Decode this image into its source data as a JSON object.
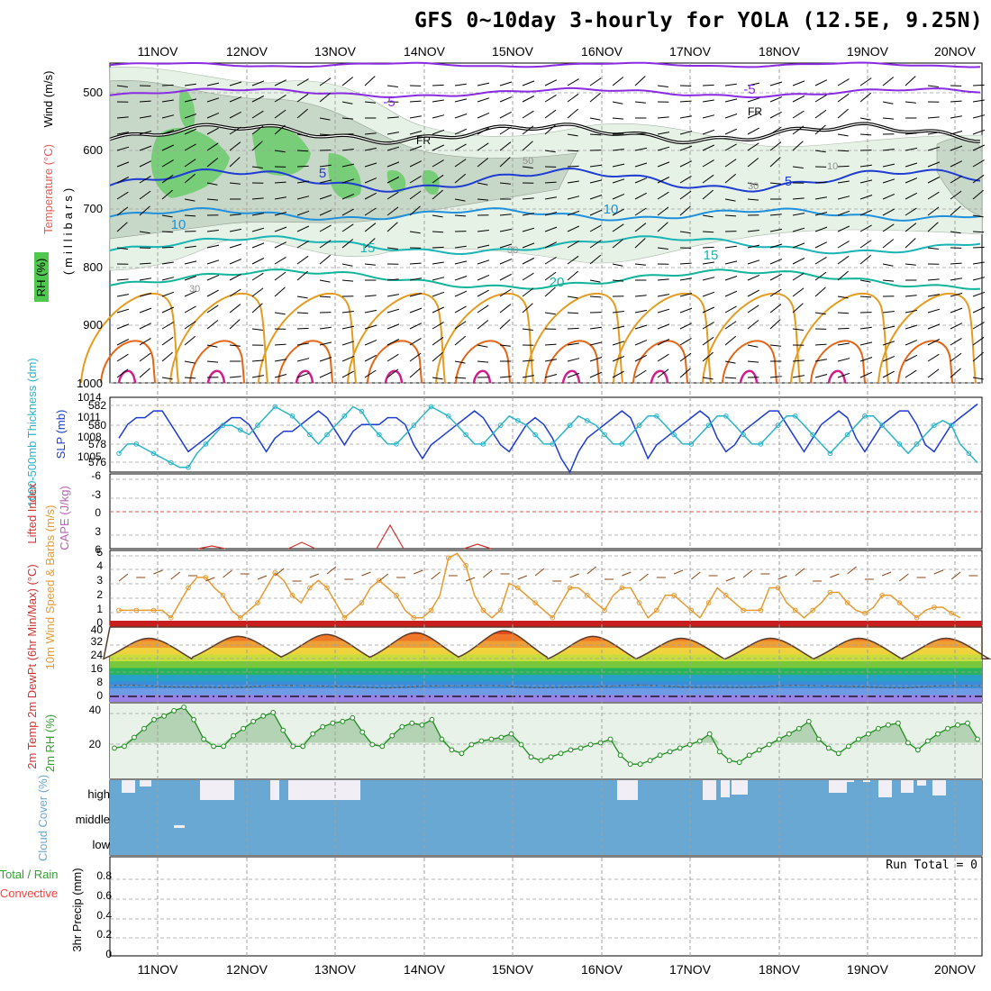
{
  "title": "GFS 0~10day 3-hourly for YOLA (12.5E, 9.25N)",
  "dates": [
    "11NOV",
    "12NOV",
    "13NOV",
    "14NOV",
    "15NOV",
    "16NOV",
    "17NOV",
    "18NOV",
    "19NOV",
    "20NOV"
  ],
  "colors": {
    "grid": "#a0a0a0",
    "purple": "#8a2be2",
    "black": "#000000",
    "blue": "#1e3cd2",
    "lightblue": "#1e90dc",
    "teal": "#18b4b4",
    "green20": "#10b49a",
    "orange": "#e69b1e",
    "darkorange": "#e66414",
    "magenta": "#d21e8c",
    "slp": "#1e3cd2",
    "thick": "#28b4c8",
    "cape_red": "#d23232",
    "wind": "#e69b32",
    "barb": "#8b4513",
    "rh": "#32a032",
    "cloud": "#6aa8d4",
    "precip_lbl": "#ff4040"
  },
  "panels": {
    "upper": {
      "ylabel": "(millibars)",
      "legend_wind": "Wind (m/s)",
      "legend_temp": "Temperature (°C)",
      "legend_rh": "RH (%)",
      "pressure_ticks": [
        "500",
        "600",
        "700",
        "800",
        "900",
        "1000"
      ],
      "contour_labels": [
        "-5",
        "-5",
        "FR",
        "FR",
        "5",
        "5",
        "10",
        "10",
        "15",
        "15",
        "20"
      ],
      "rh_labels": [
        "50",
        "30",
        "10",
        "30",
        "30"
      ]
    },
    "slp": {
      "label_thick": "1000-500mb Thickness (dm)",
      "label_slp": "SLP (mb)",
      "left_ticks": [
        "582",
        "580",
        "578",
        "576"
      ],
      "right_ticks": [
        "1014",
        "1011",
        "1008",
        "1005"
      ]
    },
    "cape": {
      "label_li": "Lifted Index",
      "label_cape": "CAPE (J/kg)",
      "ticks": [
        "-6",
        "-3",
        "0",
        "3",
        "6"
      ]
    },
    "wind10": {
      "label": "10m Wind Speed & Barbs (m/s)",
      "ticks": [
        "0",
        "1",
        "2",
        "3",
        "4",
        "5"
      ]
    },
    "temp": {
      "label": "2m Temp 2m DewPt (6hr Min/Max) (°C)",
      "ticks": [
        "0",
        "8",
        "16",
        "24",
        "32",
        "40"
      ]
    },
    "rh2m": {
      "label": "2m RH (%)",
      "ticks": [
        "20",
        "40"
      ]
    },
    "cloud": {
      "label": "Cloud Cover (%)",
      "levels": [
        "high",
        "middle",
        "low"
      ]
    },
    "precip": {
      "label": "3hr Precip (mm)",
      "label_total": "Total / Rain",
      "label_conv": "Convective",
      "ticks": [
        "0",
        "0.2",
        "0.4",
        "0.6",
        "0.8"
      ],
      "run_total": "Run Total = 0"
    }
  },
  "chart_data": [
    {
      "type": "line",
      "title": "SLP (mb)",
      "x_unit": "hours from 10NOV12Z (3-hourly)",
      "ylim": [
        1003,
        1014
      ],
      "values": [
        1008,
        1010,
        1011,
        1011,
        1012,
        1012,
        1010,
        1008,
        1006,
        1007,
        1008,
        1009,
        1010,
        1011,
        1011,
        1010,
        1008,
        1006,
        1008,
        1009,
        1009,
        1010,
        1011,
        1012,
        1011,
        1009,
        1007,
        1009,
        1010,
        1010,
        1010,
        1011,
        1011,
        1010,
        1007,
        1005,
        1007,
        1008,
        1009,
        1010,
        1011,
        1012,
        1011,
        1009,
        1007,
        1006,
        1008,
        1010,
        1011,
        1010,
        1008,
        1005,
        1003,
        1006,
        1008,
        1009,
        1010,
        1011,
        1012,
        1011,
        1008,
        1005,
        1007,
        1008,
        1009,
        1010,
        1011,
        1012,
        1011,
        1008,
        1006,
        1007,
        1009,
        1010,
        1011,
        1012,
        1012,
        1010,
        1008,
        1006,
        1008,
        1010,
        1011,
        1012,
        1011,
        1008,
        1006,
        1008,
        1010,
        1011,
        1012,
        1012,
        1010,
        1007,
        1006,
        1008,
        1010,
        1011,
        1012,
        1013
      ]
    },
    {
      "type": "line",
      "title": "1000-500mb Thickness (dm)",
      "ylim": [
        575,
        583
      ],
      "values": [
        577,
        578,
        578,
        577.5,
        577,
        576.5,
        576,
        575.5,
        575.5,
        577,
        578,
        579,
        580,
        580,
        579.5,
        579,
        580,
        581,
        582,
        581.5,
        581,
        580,
        579,
        578,
        579,
        580,
        581,
        582,
        581.5,
        580,
        579,
        578,
        578,
        579,
        580,
        581,
        582,
        581.5,
        581,
        580,
        579,
        578,
        578,
        579,
        580,
        581,
        580.5,
        580,
        579,
        578,
        578,
        579,
        580,
        581,
        580.5,
        580,
        579,
        578,
        578,
        579,
        580,
        581,
        581,
        580,
        579,
        578,
        578,
        579,
        580,
        581,
        581,
        580,
        579,
        578,
        578,
        579,
        580,
        581,
        581,
        580,
        579,
        578,
        577,
        578,
        579,
        580,
        581,
        581,
        580,
        579,
        578,
        577,
        578,
        579,
        580,
        580.5,
        580,
        578,
        577,
        576
      ]
    },
    {
      "type": "line",
      "title": "Lifted Index",
      "ylim": [
        -6,
        6
      ],
      "peaks": [
        {
          "day": "11NOV",
          "value": 5.5
        },
        {
          "day": "12NOV",
          "value": 5
        },
        {
          "day": "13NOV",
          "value": 2
        },
        {
          "day": "14NOV",
          "value": 5
        }
      ]
    },
    {
      "type": "line",
      "title": "10m Wind Speed (m/s)",
      "ylim": [
        0,
        5
      ],
      "values": [
        1,
        1,
        1,
        1,
        1,
        1,
        0.5,
        1.5,
        2.5,
        3.2,
        3.2,
        2.5,
        2,
        1,
        0.5,
        1,
        1.5,
        2.5,
        3.5,
        3,
        2,
        1.5,
        2.5,
        3,
        2.5,
        1.5,
        0.5,
        1,
        1.5,
        2.5,
        3,
        2.5,
        2,
        1,
        0.5,
        0.5,
        1,
        2,
        4.5,
        4.8,
        4,
        2,
        1,
        0.5,
        1,
        2.8,
        2.5,
        2,
        1.5,
        1,
        0.5,
        1.5,
        2.5,
        2.5,
        2,
        1.5,
        1,
        2,
        2.5,
        2.5,
        1.5,
        0.5,
        1,
        2,
        2,
        1.5,
        1,
        0.5,
        1.5,
        2.5,
        2,
        1.5,
        1,
        1,
        1,
        2.5,
        2.5,
        1.5,
        1,
        0.5,
        1,
        1.5,
        2.2,
        2.2,
        1.5,
        1,
        0.8,
        1.2,
        2,
        2,
        1.5,
        1,
        0.5,
        1,
        1.2,
        1.2,
        0.8,
        0.5
      ]
    },
    {
      "type": "area",
      "title": "2m Temp (°C)",
      "ylim": [
        0,
        40
      ],
      "daily_max": [
        34,
        35,
        36,
        37,
        38,
        35,
        34,
        34,
        34,
        34
      ],
      "daily_min": [
        23,
        24,
        24,
        24,
        24,
        23,
        23,
        23,
        23,
        23
      ]
    },
    {
      "type": "area",
      "title": "2m RH (%)",
      "ylim": [
        0,
        42
      ],
      "values": [
        17,
        18,
        23,
        28,
        33,
        35,
        38,
        40,
        33,
        22,
        18,
        18,
        24,
        28,
        32,
        35,
        37,
        27,
        18,
        18,
        25,
        29,
        31,
        32,
        34,
        26,
        19,
        18,
        24,
        29,
        31,
        30,
        33,
        22,
        16,
        14,
        19,
        21,
        22,
        23,
        25,
        19,
        12,
        10,
        12,
        14,
        16,
        17,
        19,
        20,
        22,
        13,
        8,
        8,
        10,
        13,
        15,
        17,
        19,
        21,
        25,
        15,
        10,
        9,
        13,
        16,
        19,
        22,
        25,
        28,
        32,
        22,
        17,
        14,
        18,
        22,
        25,
        28,
        30,
        31,
        20,
        16,
        21,
        25,
        28,
        30,
        31,
        22
      ]
    },
    {
      "type": "bar",
      "title": "Cloud Cover (%)",
      "categories": [
        "high",
        "middle",
        "low"
      ],
      "values": [
        100,
        100,
        100
      ]
    },
    {
      "type": "bar",
      "title": "3hr Precip (mm)",
      "ylim": [
        0,
        1
      ],
      "values": [
        0
      ],
      "run_total": 0
    }
  ]
}
